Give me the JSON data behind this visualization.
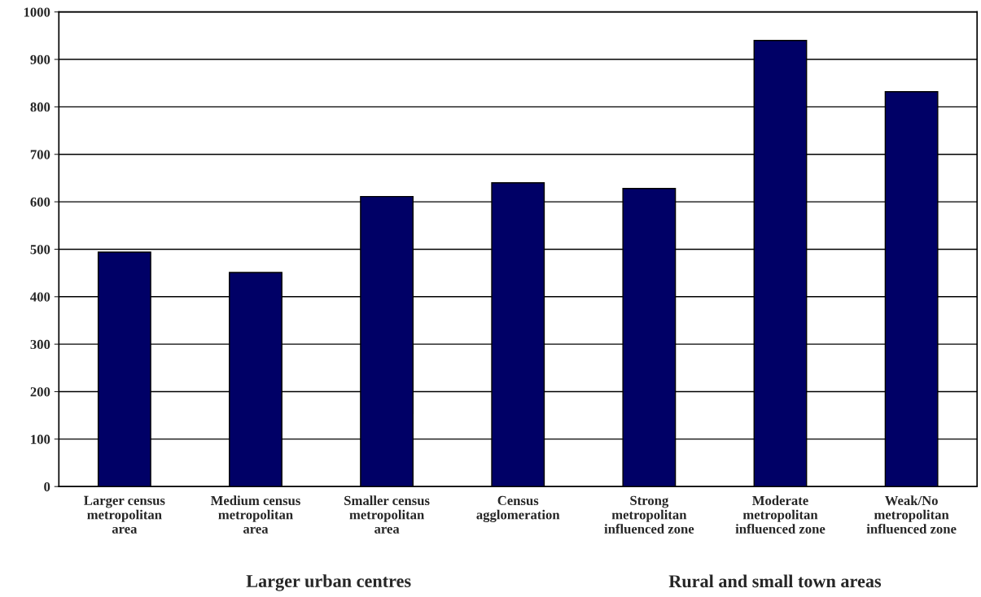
{
  "chart_data": {
    "type": "bar",
    "categories": [
      "Larger census\nmetropolitan\narea",
      "Medium census\nmetropolitan\narea",
      "Smaller census\nmetropolitan\narea",
      "Census\nagglomeration",
      "Strong\nmetropolitan\ninfluenced zone",
      "Moderate\nmetropolitan\ninfluenced zone",
      "Weak/No\nmetropolitan\ninfluenced zone"
    ],
    "values": [
      494,
      451,
      611,
      640,
      628,
      940,
      832
    ],
    "color": "#000066",
    "ylim": [
      0,
      1000
    ],
    "yticks": [
      0,
      100,
      200,
      300,
      400,
      500,
      600,
      700,
      800,
      900,
      1000
    ],
    "grid": "y",
    "annotations": [
      "Larger urban centres",
      "Rural and small town areas"
    ]
  }
}
